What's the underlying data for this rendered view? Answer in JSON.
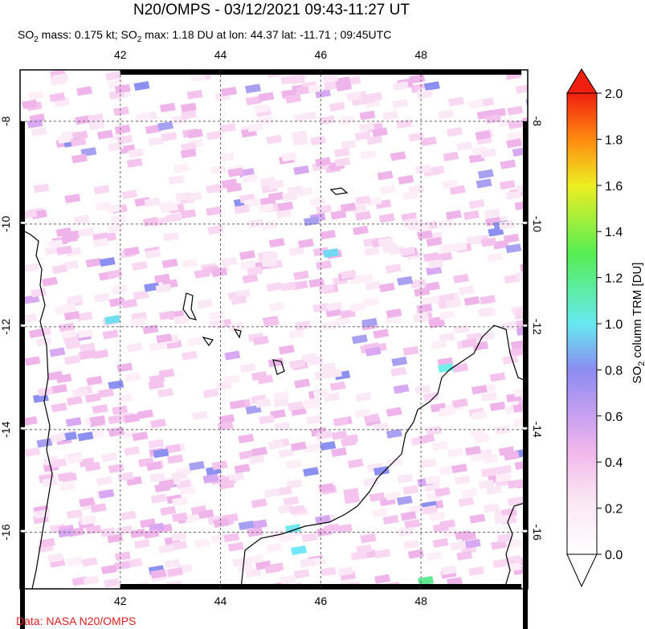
{
  "header": {
    "title": "N20/OMPS - 03/12/2021 09:43-11:27 UT",
    "subtitle": [
      "SO",
      "2",
      " mass: 0.175 kt; SO",
      "2",
      " max: 1.18 DU at lon: 44.37 lat: -11.71 ; 09:45UTC"
    ]
  },
  "map": {
    "xlim": [
      40.0,
      50.13
    ],
    "ylim": [
      -17.1,
      -7.0
    ],
    "xticks": [
      42,
      44,
      46,
      48
    ],
    "yticks": [
      -8,
      -10,
      -12,
      -14,
      -16
    ]
  },
  "colorbar": {
    "label": [
      "SO",
      "2",
      " column TRM [DU]"
    ],
    "lim": [
      0,
      2
    ],
    "ticks": [
      {
        "value": 0,
        "label": "0.0"
      },
      {
        "value": 0.2,
        "label": "0.2"
      },
      {
        "value": 0.4,
        "label": "0.4"
      },
      {
        "value": 0.6,
        "label": "0.6"
      },
      {
        "value": 0.8,
        "label": "0.8"
      },
      {
        "value": 1.0,
        "label": "1.0"
      },
      {
        "value": 1.2,
        "label": "1.2"
      },
      {
        "value": 1.4,
        "label": "1.4"
      },
      {
        "value": 1.6,
        "label": "1.6"
      },
      {
        "value": 1.8,
        "label": "1.8"
      },
      {
        "value": 2.0,
        "label": "2.0"
      }
    ]
  },
  "credit": "Data: NASA N20/OMPS"
}
